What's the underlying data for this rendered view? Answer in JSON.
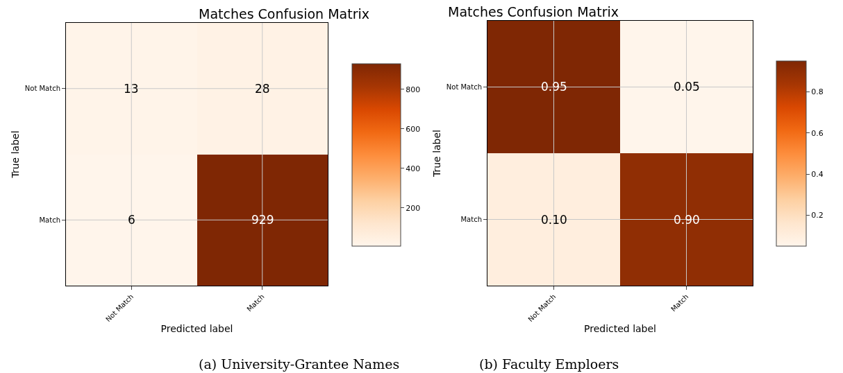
{
  "chart_data": [
    {
      "type": "heatmap",
      "title": "Matches Confusion Matrix",
      "xlabel": "Predicted label",
      "ylabel": "True label",
      "categories": [
        "Not Match",
        "Match"
      ],
      "y_categories": [
        "Not Match",
        "Match"
      ],
      "cells": [
        [
          13,
          28
        ],
        [
          6,
          929
        ]
      ],
      "data_labels": true,
      "clim": [
        6,
        929
      ],
      "cticks": [
        200,
        400,
        600,
        800
      ],
      "grid": true,
      "annotations": [
        "(a) University-Grantee Names"
      ]
    },
    {
      "type": "heatmap",
      "title": "Matches Confusion Matrix",
      "xlabel": "Predicted label",
      "ylabel": "True label",
      "categories": [
        "Not Match",
        "Match"
      ],
      "y_categories": [
        "Not Match",
        "Match"
      ],
      "cells": [
        [
          0.95,
          0.05
        ],
        [
          0.1,
          0.9
        ]
      ],
      "cell_labels": [
        [
          "0.95",
          "0.05"
        ],
        [
          "0.10",
          "0.90"
        ]
      ],
      "clim": [
        0.05,
        0.95
      ],
      "cticks": [
        0.2,
        0.4,
        0.6,
        0.8
      ],
      "grid": true,
      "annotations": [
        "(b) Faculty Emploers"
      ]
    }
  ]
}
